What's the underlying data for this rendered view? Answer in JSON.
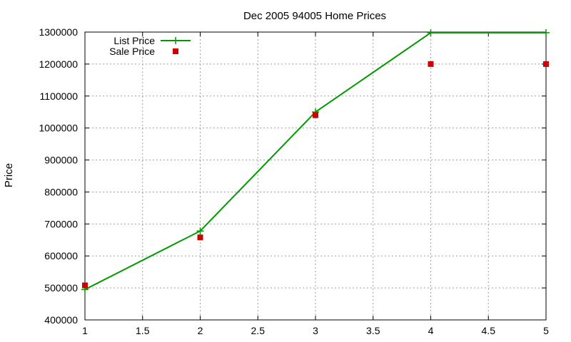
{
  "chart_data": {
    "type": "line",
    "title": "Dec 2005 94005 Home Prices",
    "xlabel": "",
    "ylabel": "Price",
    "xlim": [
      1,
      5
    ],
    "ylim": [
      400000,
      1300000
    ],
    "x_ticks": [
      "1",
      "1.5",
      "2",
      "2.5",
      "3",
      "3.5",
      "4",
      "4.5",
      "5"
    ],
    "y_ticks": [
      "400000",
      "500000",
      "600000",
      "700000",
      "800000",
      "900000",
      "1000000",
      "1100000",
      "1200000",
      "1300000"
    ],
    "grid": true,
    "legend_position": "top-left",
    "series": [
      {
        "name": "List Price",
        "style": "linespoints",
        "marker": "plus",
        "color": "#009900",
        "points": [
          {
            "x": 1,
            "y": 495000
          },
          {
            "x": 2,
            "y": 678000
          },
          {
            "x": 3,
            "y": 1050000
          },
          {
            "x": 4,
            "y": 1298000
          },
          {
            "x": 5,
            "y": 1298000
          }
        ]
      },
      {
        "name": "Sale Price",
        "style": "points",
        "marker": "square",
        "color": "#cc0000",
        "points": [
          {
            "x": 1,
            "y": 508000
          },
          {
            "x": 2,
            "y": 658000
          },
          {
            "x": 3,
            "y": 1040000
          },
          {
            "x": 4,
            "y": 1200000
          },
          {
            "x": 5,
            "y": 1200000
          }
        ]
      }
    ]
  }
}
